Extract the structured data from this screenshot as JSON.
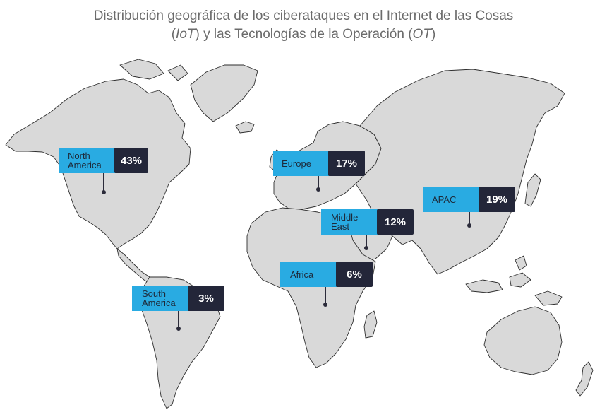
{
  "title": {
    "line1": "Distribución geográfica de los ciberataques en el Internet de las Cosas",
    "line2_open": "(",
    "line2_iot": "IoT",
    "line2_mid": ") y las Tecnologías de la Operación (",
    "line2_ot": "OT",
    "line2_close": ")"
  },
  "colors": {
    "label_bg": "#29abe2",
    "value_bg": "#232639",
    "land": "#d9d9d9",
    "coast": "#2e2e2e",
    "title": "#6b6b6b"
  },
  "regions": [
    {
      "id": "north-america",
      "name": "North America",
      "share_percent": 43,
      "value_label": "43%"
    },
    {
      "id": "europe",
      "name": "Europe",
      "share_percent": 17,
      "value_label": "17%"
    },
    {
      "id": "apac",
      "name": "APAC",
      "share_percent": 19,
      "value_label": "19%"
    },
    {
      "id": "middle-east",
      "name": "Middle East",
      "share_percent": 12,
      "value_label": "12%"
    },
    {
      "id": "africa",
      "name": "Africa",
      "share_percent": 6,
      "value_label": "6%"
    },
    {
      "id": "south-america",
      "name": "South America",
      "share_percent": 3,
      "value_label": "3%"
    }
  ]
}
